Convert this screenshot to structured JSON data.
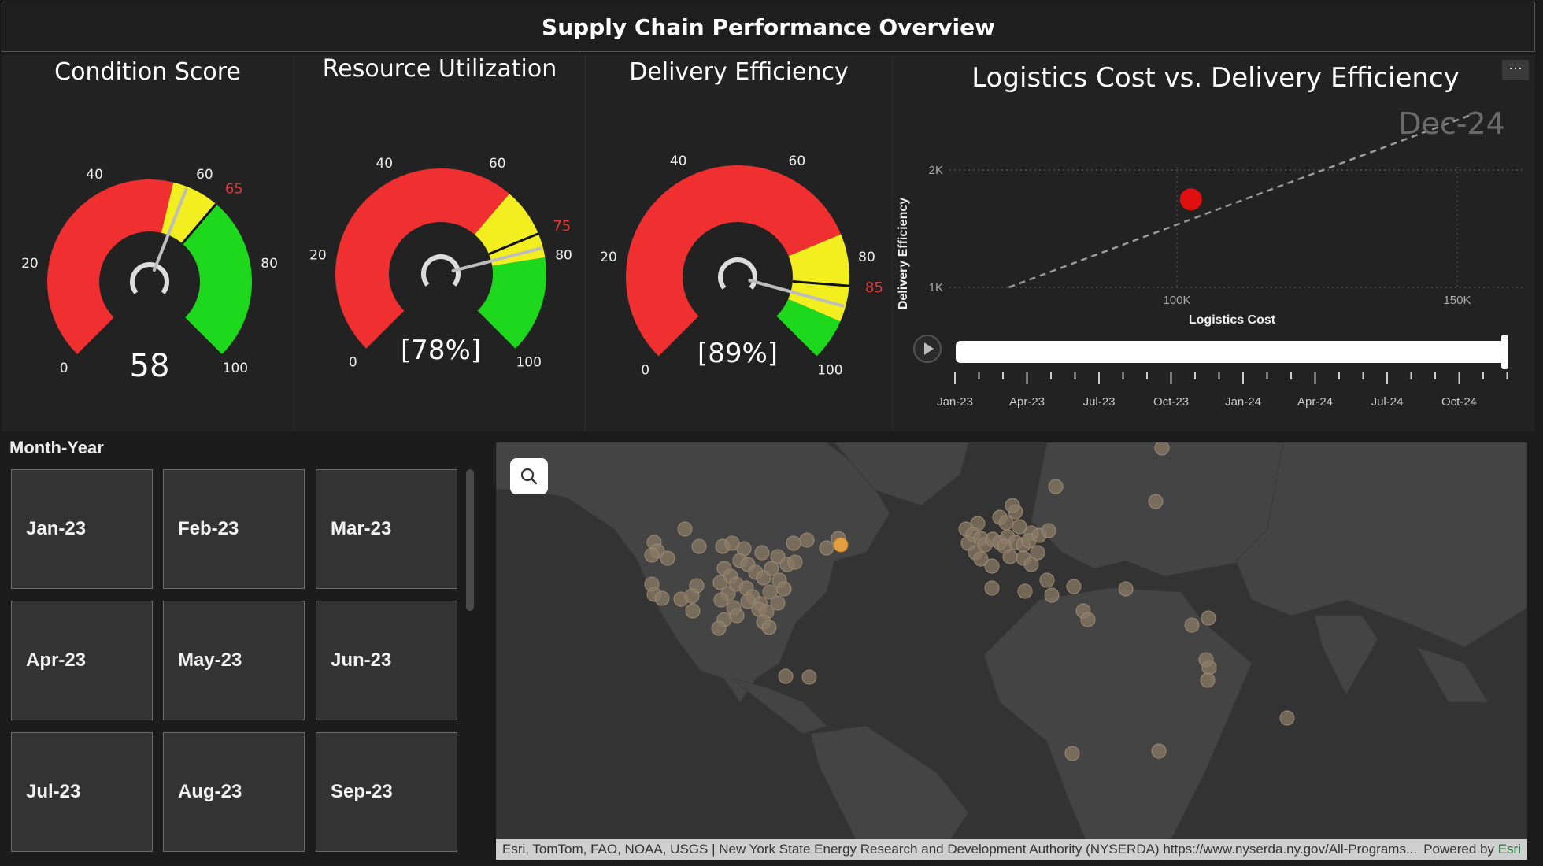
{
  "header": {
    "title": "Supply Chain Performance Overview"
  },
  "gauges": [
    {
      "id": "condition",
      "title": "Condition Score",
      "value": 58,
      "display": "58",
      "target": 65,
      "target_label": "65",
      "bands": [
        [
          0,
          55,
          "#f03030"
        ],
        [
          55,
          65,
          "#f2ee1f"
        ],
        [
          65,
          100,
          "#1ed81e"
        ]
      ],
      "ticks": [
        "0",
        "20",
        "40",
        "60",
        "80",
        "100"
      ]
    },
    {
      "id": "resource",
      "title": "Resource Utilization",
      "value": 78,
      "display": "[78%]",
      "target": 75,
      "target_label": "75",
      "bands": [
        [
          0,
          65,
          "#f03030"
        ],
        [
          65,
          80,
          "#f2ee1f"
        ],
        [
          80,
          100,
          "#1ed81e"
        ]
      ],
      "ticks": [
        "0",
        "20",
        "40",
        "60",
        "80",
        "100"
      ]
    },
    {
      "id": "delivery",
      "title": "Delivery Efficiency",
      "value": 89,
      "display": "[89%]",
      "target": 85,
      "target_label": "85",
      "bands": [
        [
          0,
          75,
          "#f03030"
        ],
        [
          75,
          92,
          "#f2ee1f"
        ],
        [
          92,
          100,
          "#1ed81e"
        ]
      ],
      "ticks": [
        "0",
        "20",
        "40",
        "60",
        "80",
        "100"
      ]
    }
  ],
  "scatter": {
    "more_label": "···",
    "chart_data": {
      "type": "scatter",
      "title": "Logistics Cost vs. Delivery Efficiency",
      "xlabel": "Logistics Cost",
      "ylabel": "Delivery Efficiency",
      "x_ticks": [
        {
          "value": 100000,
          "label": "100K"
        },
        {
          "value": 150000,
          "label": "150K"
        }
      ],
      "y_ticks": [
        {
          "value": 1000,
          "label": "1K"
        },
        {
          "value": 2000,
          "label": "2K"
        }
      ],
      "xlim": [
        70000,
        160000
      ],
      "ylim": [
        1000,
        2500
      ],
      "points": [
        {
          "x": 102500,
          "y": 1750,
          "color": "#e01010"
        }
      ],
      "trail": [
        [
          70000,
          1000
        ],
        [
          153000,
          2480
        ]
      ],
      "play_label": "Dec-24"
    },
    "timeline": [
      "Jan-23",
      "Apr-23",
      "Jul-23",
      "Oct-23",
      "Jan-24",
      "Apr-24",
      "Jul-24",
      "Oct-24"
    ]
  },
  "slicer": {
    "title": "Month-Year",
    "items": [
      "Jan-23",
      "Feb-23",
      "Mar-23",
      "Apr-23",
      "May-23",
      "Jun-23",
      "Jul-23",
      "Aug-23",
      "Sep-23"
    ]
  },
  "map": {
    "attribution": "Esri, TomTom, FAO, NOAA, USGS | New York State Energy Research and Development Authority (NYSERDA) https://www.nyserda.ny.gov/All-Programs...",
    "powered_by": "Powered by",
    "esri": "Esri",
    "bubble_color": "#8a7a66",
    "highlight_color": "#e0a040"
  }
}
